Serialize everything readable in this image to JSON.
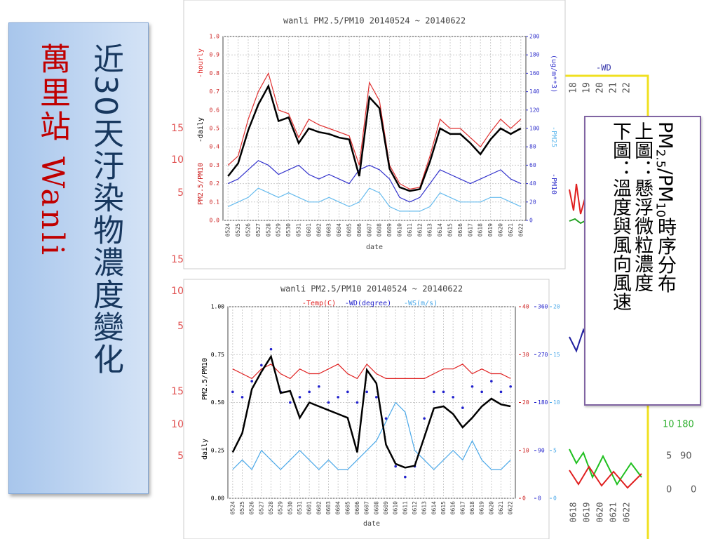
{
  "slide": {
    "title": "近30天汙染物濃度變化",
    "station": "萬里站",
    "station_en": "Wanli"
  },
  "note": {
    "pm": "PM",
    "sub1": "2.5",
    "mid": "/PM",
    "sub2": "10",
    "rest": "時序分布",
    "line2": "上圖：懸浮微粒濃度",
    "line3": "下圖：溫度與風向風速"
  },
  "background": {
    "left_labels": [
      "15",
      "10",
      "5",
      "15",
      "10",
      "5",
      "15",
      "10",
      "5"
    ],
    "right_legend": "-WD",
    "right_top": [
      "18",
      "19",
      "20",
      "21",
      "22"
    ],
    "right_axis": [
      "10",
      "180",
      "5",
      "90",
      "0",
      "0"
    ],
    "right_dates": [
      "0618",
      "0619",
      "0620",
      "0621",
      "0622"
    ]
  },
  "chart_data": [
    {
      "type": "line",
      "title": "wanli PM2.5/PM10 20140524 ~ 20140622",
      "xlabel": "date",
      "ylabel": "PM2.5/PM10",
      "y2label": "(ug/m**3)",
      "categories": [
        "0524",
        "0525",
        "0526",
        "0527",
        "0528",
        "0529",
        "0530",
        "0531",
        "0601",
        "0602",
        "0603",
        "0604",
        "0605",
        "0606",
        "0607",
        "0608",
        "0609",
        "0610",
        "0611",
        "0612",
        "0613",
        "0614",
        "0615",
        "0616",
        "0617",
        "0618",
        "0619",
        "0620",
        "0621",
        "0622"
      ],
      "ylim": [
        0,
        1
      ],
      "yticks": [
        {
          "value": 0,
          "label": "0.0"
        },
        0.1,
        0.2,
        0.3,
        0.4,
        0.5,
        0.6,
        0.7,
        0.8,
        0.9,
        {
          "value": 1,
          "label": "1.0"
        }
      ],
      "y2lim": [
        0,
        200
      ],
      "y2ticks": [
        0,
        20,
        40,
        60,
        80,
        100,
        120,
        140,
        160,
        180,
        200
      ],
      "grid": true,
      "series": [
        {
          "name": "-hourly",
          "color": "#e03030",
          "axis": "y",
          "values": [
            0.3,
            0.35,
            0.55,
            0.7,
            0.8,
            0.6,
            0.58,
            0.45,
            0.55,
            0.52,
            0.5,
            0.48,
            0.46,
            0.3,
            0.75,
            0.65,
            0.3,
            0.2,
            0.17,
            0.18,
            0.35,
            0.55,
            0.5,
            0.5,
            0.45,
            0.4,
            0.48,
            0.55,
            0.5,
            0.55
          ]
        },
        {
          "name": "-daily",
          "color": "#000000",
          "axis": "y",
          "values": [
            0.24,
            0.31,
            0.49,
            0.63,
            0.73,
            0.54,
            0.56,
            0.42,
            0.5,
            0.48,
            0.47,
            0.45,
            0.44,
            0.24,
            0.67,
            0.61,
            0.28,
            0.18,
            0.16,
            0.17,
            0.32,
            0.5,
            0.47,
            0.47,
            0.42,
            0.36,
            0.44,
            0.5,
            0.47,
            0.5
          ]
        },
        {
          "name": "-PM10",
          "color": "#3333cc",
          "axis": "y2",
          "values": [
            40,
            45,
            55,
            65,
            60,
            50,
            55,
            60,
            50,
            45,
            50,
            45,
            40,
            55,
            60,
            55,
            45,
            25,
            20,
            25,
            40,
            55,
            50,
            45,
            40,
            45,
            50,
            55,
            45,
            40
          ]
        },
        {
          "name": "-PM25",
          "color": "#66bbee",
          "axis": "y2",
          "values": [
            15,
            20,
            25,
            35,
            30,
            25,
            30,
            25,
            20,
            20,
            25,
            20,
            15,
            20,
            35,
            30,
            15,
            10,
            10,
            10,
            15,
            30,
            25,
            20,
            20,
            20,
            25,
            25,
            20,
            15
          ]
        }
      ]
    },
    {
      "type": "line",
      "title": "wanli PM2.5/PM10 20140524 ~ 20140622",
      "xlabel": "date",
      "ylabel": "PM2.5/PM10",
      "categories": [
        "0524",
        "0525",
        "0526",
        "0527",
        "0528",
        "0529",
        "0530",
        "0531",
        "0601",
        "0602",
        "0603",
        "0604",
        "0605",
        "0606",
        "0607",
        "0608",
        "0609",
        "0610",
        "0611",
        "0612",
        "0613",
        "0614",
        "0615",
        "0616",
        "0617",
        "0618",
        "0619",
        "0620",
        "0621",
        "0622"
      ],
      "ylim": [
        0,
        1
      ],
      "yticks": [
        {
          "value": 0,
          "label": "0.00"
        },
        {
          "value": 0.25,
          "label": "0.25"
        },
        {
          "value": 0.5,
          "label": "0.50"
        },
        {
          "value": 0.75,
          "label": "0.75"
        },
        {
          "value": 1,
          "label": "1.00"
        }
      ],
      "y2lim": [
        0,
        40
      ],
      "y2ticks": [
        0,
        10,
        20,
        30,
        40
      ],
      "y3lim": [
        0,
        360
      ],
      "y3ticks": [
        0,
        90,
        180,
        270,
        360
      ],
      "y4lim": [
        0,
        20
      ],
      "y4ticks": [
        0,
        5,
        10,
        15,
        20
      ],
      "grid": true,
      "series": [
        {
          "name": "daily",
          "color": "#000000",
          "axis": "y",
          "values": [
            0.24,
            0.34,
            0.57,
            0.66,
            0.74,
            0.55,
            0.56,
            0.42,
            0.5,
            0.48,
            0.46,
            0.44,
            0.42,
            0.24,
            0.67,
            0.6,
            0.28,
            0.18,
            0.16,
            0.17,
            0.32,
            0.47,
            0.48,
            0.44,
            0.37,
            0.42,
            0.48,
            0.52,
            0.49,
            0.48
          ]
        },
        {
          "name": "-Temp(C)",
          "color": "#e02020",
          "axis": "y2",
          "values": [
            27,
            26,
            25,
            27,
            28,
            26,
            25,
            27,
            26,
            26,
            27,
            28,
            26,
            25,
            28,
            26,
            25,
            25,
            25,
            25,
            25,
            26,
            27,
            27,
            28,
            26,
            27,
            26,
            26,
            25
          ]
        },
        {
          "name": "-WD(degree)",
          "color": "#2020cc",
          "axis": "y3",
          "mode": "markers",
          "values": [
            200,
            190,
            220,
            250,
            280,
            200,
            180,
            190,
            200,
            210,
            180,
            190,
            200,
            180,
            200,
            190,
            150,
            60,
            40,
            60,
            150,
            200,
            200,
            190,
            170,
            210,
            200,
            220,
            200,
            210
          ]
        },
        {
          "name": "-WS(m/s)",
          "color": "#4aa8e8",
          "axis": "y4",
          "values": [
            3,
            4,
            3,
            5,
            4,
            3,
            4,
            5,
            4,
            3,
            4,
            3,
            3,
            4,
            5,
            6,
            8,
            10,
            9,
            5,
            4,
            3,
            4,
            5,
            4,
            6,
            4,
            3,
            3,
            4
          ]
        }
      ]
    }
  ]
}
